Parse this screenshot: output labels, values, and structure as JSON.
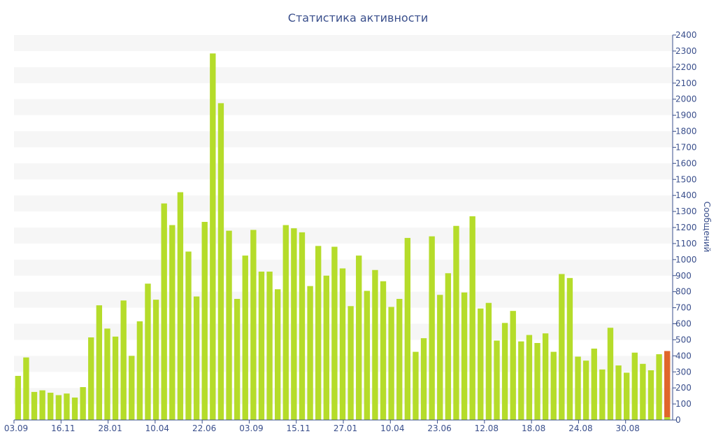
{
  "chart_data": {
    "type": "bar",
    "title": "Статистика активности",
    "ylabel": "Сообщений",
    "xlabel": "",
    "ylim": [
      0,
      2400
    ],
    "y_ticks": [
      0,
      100,
      200,
      300,
      400,
      500,
      600,
      700,
      800,
      900,
      1000,
      1100,
      1200,
      1300,
      1400,
      1500,
      1600,
      1700,
      1800,
      1900,
      2000,
      2100,
      2200,
      2300,
      2400
    ],
    "y_axis_side": "right",
    "grid": "horizontal alternating bands",
    "x_tick_labels": [
      "03.09",
      "16.11",
      "28.01",
      "10.04",
      "22.06",
      "03.09",
      "15.11",
      "27.01",
      "10.04",
      "23.06",
      "12.08",
      "18.08",
      "24.08",
      "30.08"
    ],
    "values": [
      275,
      390,
      175,
      185,
      170,
      155,
      165,
      140,
      205,
      515,
      715,
      570,
      520,
      745,
      400,
      615,
      850,
      750,
      1350,
      1215,
      1420,
      1050,
      770,
      1235,
      2285,
      1975,
      1180,
      755,
      1025,
      1185,
      925,
      925,
      815,
      1215,
      1195,
      1170,
      835,
      1085,
      900,
      1080,
      945,
      710,
      1025,
      805,
      935,
      865,
      705,
      755,
      1135,
      425,
      510,
      1145,
      780,
      915,
      1210,
      795,
      1270,
      695,
      730,
      495,
      605,
      680,
      490,
      530,
      480,
      540,
      425,
      910,
      885,
      395,
      370,
      445,
      315,
      575,
      340,
      295,
      420,
      350,
      310,
      410,
      430
    ],
    "bar_color": "#b5dc2a",
    "highlight_color": "#e0662a",
    "highlight_index": 80
  }
}
